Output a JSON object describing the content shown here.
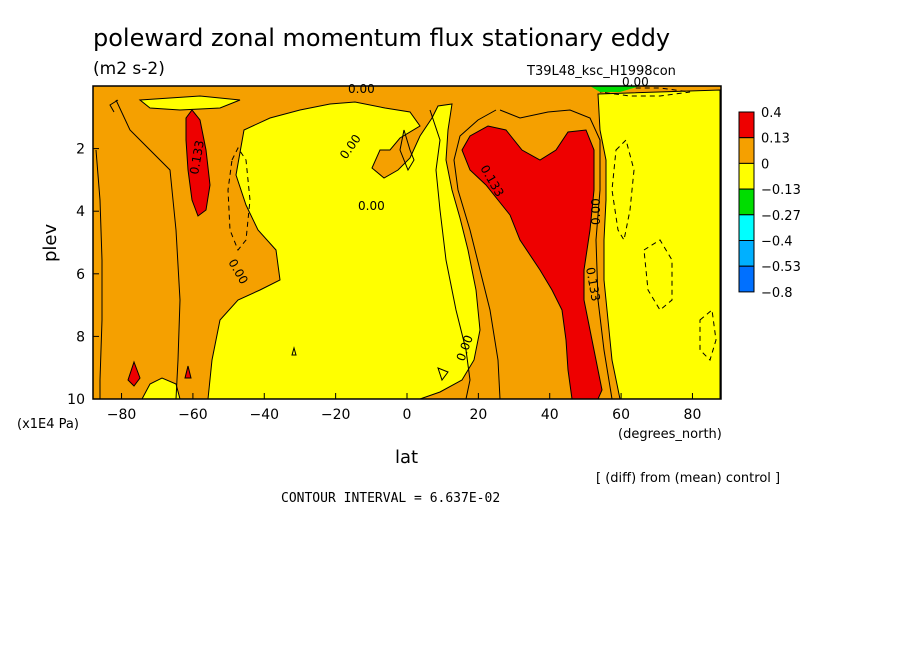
{
  "chart_data": {
    "type": "heatmap",
    "title": "poleward zonal momentum flux stationary eddy",
    "units": "(m2 s-2)",
    "run_label": "T39L48_ksc_H1998con",
    "xlabel": "lat",
    "xunits": "(degrees_north)",
    "ylabel": "plev",
    "yunits": "(x1E4 Pa)",
    "x_ticks": [
      -80,
      -60,
      -40,
      -20,
      0,
      20,
      40,
      60,
      80
    ],
    "x_tick_labels": [
      "−80",
      "−60",
      "−40",
      "−20",
      "0",
      "20",
      "40",
      "60",
      "80"
    ],
    "y_ticks": [
      2,
      4,
      6,
      8,
      10
    ],
    "xlim": [
      -88,
      88
    ],
    "ylim": [
      10,
      0
    ],
    "colorbar": {
      "levels": [
        "0.4",
        "0.13",
        "0",
        "−0.13",
        "−0.27",
        "−0.4",
        "−0.53",
        "−0.8"
      ],
      "colors": [
        "#ee0000",
        "#f5a000",
        "#ffff00",
        "#00dd00",
        "#00ffff",
        "#00b0ff",
        "#0070ff"
      ]
    },
    "contour_labels": [
      "0.00",
      "0.00",
      "0.00",
      "0.00",
      "0.00",
      "0.00",
      "0.00",
      "0.133",
      "0.133",
      "0.133"
    ],
    "regions": [
      {
        "level": "0.13",
        "desc": "orange, 0 to 0.13",
        "lat": [
          -88,
          88
        ],
        "plev": [
          0,
          10
        ]
      },
      {
        "level": "0",
        "desc": "yellow, -0.13 to 0",
        "lat": [
          -55,
          18
        ],
        "plev": [
          0.5,
          10
        ]
      },
      {
        "level": "0",
        "desc": "yellow, -0.13 to 0",
        "lat": [
          55,
          88
        ],
        "plev": [
          0.3,
          10
        ]
      },
      {
        "level": "0.4",
        "desc": "red, >0.133",
        "lat": [
          -62,
          -57
        ],
        "plev": [
          0.8,
          4.2
        ]
      },
      {
        "level": "0.4",
        "desc": "red, >0.133",
        "lat": [
          17,
          56
        ],
        "plev": [
          1.2,
          9.8
        ]
      }
    ],
    "footnote": "[ (diff) from (mean) control ]",
    "contour_interval": "CONTOUR INTERVAL = 6.637E-02"
  }
}
